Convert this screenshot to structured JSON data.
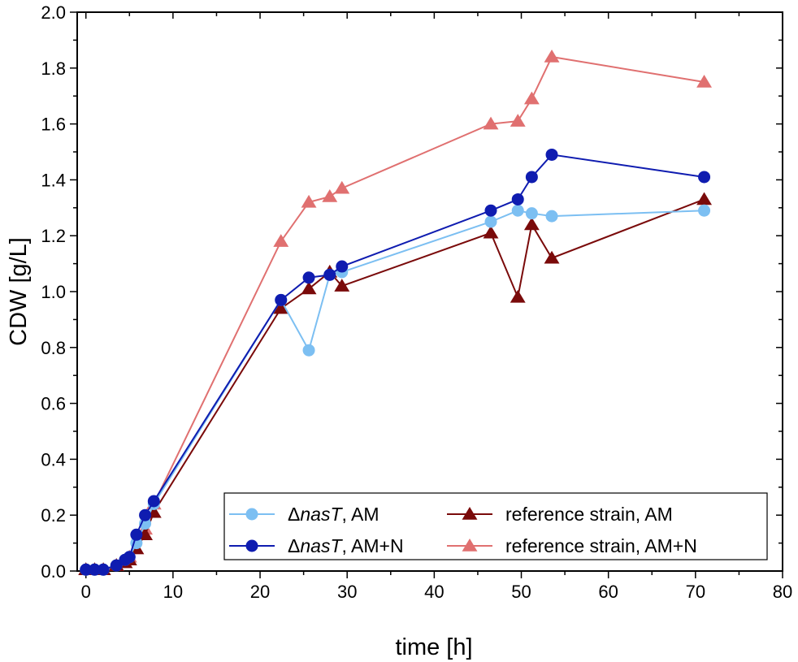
{
  "chart_data": {
    "type": "line",
    "title": "",
    "xlabel": "time [h]",
    "ylabel": "CDW [g/L]",
    "xlim": [
      -1,
      80
    ],
    "ylim": [
      0,
      2.0
    ],
    "x_ticks": [
      0,
      10,
      20,
      30,
      40,
      50,
      60,
      70,
      80
    ],
    "x_tick_labels": [
      "0",
      "10",
      "20",
      "30",
      "40",
      "50",
      "60",
      "70",
      "80"
    ],
    "y_ticks": [
      0,
      0.2,
      0.4,
      0.6,
      0.8,
      1.0,
      1.2,
      1.4,
      1.6,
      1.8,
      2.0
    ],
    "y_tick_labels": [
      "0.0",
      "0.2",
      "0.4",
      "0.6",
      "0.8",
      "1.0",
      "1.2",
      "1.4",
      "1.6",
      "1.8",
      "2.0"
    ],
    "grid": false,
    "legend_position": "bottom-right",
    "series": [
      {
        "name": "ΔnasT, AM",
        "name_prefix": "Δ",
        "name_italic": "nasT",
        "name_suffix": ", AM",
        "color": "#7cbff2",
        "marker": "circle",
        "x": [
          0,
          1,
          2,
          3.5,
          4.5,
          5,
          5.8,
          6.8,
          7.8,
          22.4,
          25.6,
          28,
          29.4,
          46.5,
          49.6,
          51.2,
          53.5,
          71
        ],
        "y": [
          0.005,
          0.005,
          0.005,
          0.02,
          0.04,
          0.05,
          0.1,
          0.17,
          0.24,
          0.97,
          0.79,
          1.06,
          1.07,
          1.25,
          1.29,
          1.28,
          1.27,
          1.29
        ]
      },
      {
        "name": "ΔnasT, AM+N",
        "name_prefix": "Δ",
        "name_italic": "nasT",
        "name_suffix": ", AM+N",
        "color": "#0f1cb0",
        "marker": "circle",
        "x": [
          0,
          1,
          2,
          3.5,
          4.5,
          5,
          5.8,
          6.8,
          7.8,
          22.4,
          25.6,
          28,
          29.4,
          46.5,
          49.6,
          51.2,
          53.5,
          71
        ],
        "y": [
          0.005,
          0.005,
          0.005,
          0.02,
          0.04,
          0.05,
          0.13,
          0.2,
          0.25,
          0.97,
          1.05,
          1.06,
          1.09,
          1.29,
          1.33,
          1.41,
          1.49,
          1.41
        ]
      },
      {
        "name": "reference strain, AM",
        "color": "#7a0a0a",
        "marker": "triangle",
        "x": [
          0,
          1,
          2,
          3.5,
          4.5,
          5,
          5.8,
          6.8,
          7.8,
          22.4,
          25.6,
          28,
          29.4,
          46.5,
          49.6,
          51.2,
          53.5,
          71
        ],
        "y": [
          0.005,
          0.005,
          0.005,
          0.02,
          0.03,
          0.04,
          0.08,
          0.13,
          0.21,
          0.94,
          1.01,
          1.07,
          1.02,
          1.21,
          0.98,
          1.24,
          1.12,
          1.33
        ]
      },
      {
        "name": "reference strain, AM+N",
        "color": "#e07070",
        "marker": "triangle",
        "x": [
          0,
          1,
          2,
          3.5,
          4.5,
          5,
          5.8,
          6.8,
          7.8,
          22.4,
          25.6,
          28,
          29.4,
          46.5,
          49.6,
          51.2,
          53.5,
          71
        ],
        "y": [
          0.005,
          0.005,
          0.005,
          0.02,
          0.04,
          0.05,
          0.08,
          0.15,
          0.24,
          1.18,
          1.32,
          1.34,
          1.37,
          1.6,
          1.61,
          1.69,
          1.84,
          1.75
        ]
      }
    ],
    "legend_order": [
      0,
      2,
      1,
      3
    ]
  }
}
